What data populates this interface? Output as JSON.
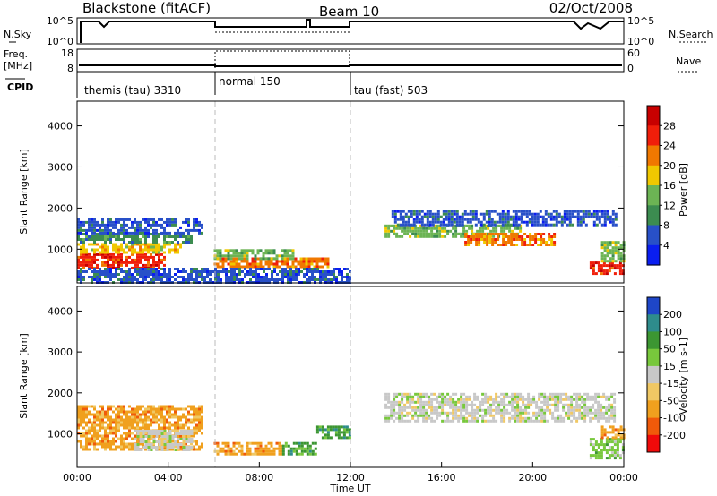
{
  "header": {
    "station": "Blackstone (fitACF)",
    "beam": "Beam 10",
    "date": "02/Oct/2008"
  },
  "top_panel": {
    "left_labels": [
      "N.Sky",
      "Freq.",
      "[MHz]",
      "CPID"
    ],
    "right_labels": [
      "N.Search",
      "Nave"
    ],
    "nsky_ticks": [
      "10^5",
      "10^0"
    ],
    "nsearch_ticks": [
      "10^5",
      "10^0"
    ],
    "freq_ticks": [
      "18",
      "8"
    ],
    "nave_ticks": [
      "60",
      "0"
    ]
  },
  "cpid_modes": [
    {
      "label": "themis (tau) 3310",
      "start_hour": 0
    },
    {
      "label": "normal 150",
      "start_hour": 6
    },
    {
      "label": "tau (fast) 503",
      "start_hour": 12
    }
  ],
  "chart_data": [
    {
      "type": "heatmap",
      "name": "power",
      "ylabel": "Slant Range [km]",
      "xlim_hours": [
        0,
        24
      ],
      "ylim_km": [
        180,
        4600
      ],
      "y_ticks": [
        "1000",
        "2000",
        "3000",
        "4000"
      ],
      "colorbar": {
        "label": "Power [dB]",
        "ticks": [
          "4",
          "8",
          "12",
          "16",
          "20",
          "24",
          "28"
        ],
        "colors": [
          "#0a1ef0",
          "#2850c8",
          "#3c8c50",
          "#6cb454",
          "#f0c800",
          "#f07800",
          "#f01e0a",
          "#c80000"
        ]
      },
      "regions": [
        {
          "x0": 0.0,
          "x1": 3.8,
          "y0": 550,
          "y1": 900,
          "level": 6
        },
        {
          "x0": 0.0,
          "x1": 4.5,
          "y0": 900,
          "y1": 1150,
          "level": 4
        },
        {
          "x0": 0.0,
          "x1": 5.0,
          "y0": 1150,
          "y1": 1400,
          "level": 2
        },
        {
          "x0": 0.0,
          "x1": 5.5,
          "y0": 1400,
          "y1": 1750,
          "level": 1
        },
        {
          "x0": 6.0,
          "x1": 11.0,
          "y0": 550,
          "y1": 800,
          "level": 5
        },
        {
          "x0": 6.0,
          "x1": 9.5,
          "y0": 800,
          "y1": 1000,
          "level": 3
        },
        {
          "x0": 0.0,
          "x1": 12.0,
          "y0": 200,
          "y1": 550,
          "level": 1
        },
        {
          "x0": 13.5,
          "x1": 19.5,
          "y0": 1300,
          "y1": 1600,
          "level": 3
        },
        {
          "x0": 17.0,
          "x1": 21.0,
          "y0": 1100,
          "y1": 1400,
          "level": 5
        },
        {
          "x0": 13.8,
          "x1": 23.6,
          "y0": 1600,
          "y1": 1950,
          "level": 1
        },
        {
          "x0": 22.5,
          "x1": 24.0,
          "y0": 400,
          "y1": 700,
          "level": 6
        },
        {
          "x0": 23.0,
          "x1": 24.0,
          "y0": 700,
          "y1": 1200,
          "level": 3
        }
      ]
    },
    {
      "type": "heatmap",
      "name": "velocity",
      "ylabel": "Slant Range [km]",
      "xlim_hours": [
        0,
        24
      ],
      "ylim_km": [
        180,
        4600
      ],
      "y_ticks": [
        "1000",
        "2000",
        "3000",
        "4000"
      ],
      "x_ticks": [
        "00:00",
        "04:00",
        "08:00",
        "12:00",
        "16:00",
        "20:00",
        "00:00"
      ],
      "xlabel": "Time UT",
      "colorbar": {
        "label": "Velocity [m s-1]",
        "ticks": [
          "200",
          "100",
          "50",
          "15",
          "-15",
          "-50",
          "-100",
          "-200"
        ],
        "colors": [
          "#1e46c8",
          "#2e8c8c",
          "#3c9632",
          "#78c83c",
          "#c8c8c8",
          "#f0c864",
          "#f0a01e",
          "#f05a0a",
          "#f00a0a"
        ]
      },
      "regions": [
        {
          "x0": 0.0,
          "x1": 5.5,
          "y0": 600,
          "y1": 1700,
          "level": 6
        },
        {
          "x0": 2.5,
          "x1": 5.0,
          "y0": 600,
          "y1": 1100,
          "level": 4
        },
        {
          "x0": 6.0,
          "x1": 9.0,
          "y0": 500,
          "y1": 800,
          "level": 6
        },
        {
          "x0": 9.0,
          "x1": 10.5,
          "y0": 500,
          "y1": 800,
          "level": 2
        },
        {
          "x0": 10.5,
          "x1": 12.0,
          "y0": 900,
          "y1": 1200,
          "level": 2
        },
        {
          "x0": 13.5,
          "x1": 23.6,
          "y0": 1300,
          "y1": 2000,
          "level": 4
        },
        {
          "x0": 22.5,
          "x1": 24.0,
          "y0": 400,
          "y1": 900,
          "level": 3
        },
        {
          "x0": 23.0,
          "x1": 24.0,
          "y0": 900,
          "y1": 1200,
          "level": 6
        }
      ]
    }
  ]
}
